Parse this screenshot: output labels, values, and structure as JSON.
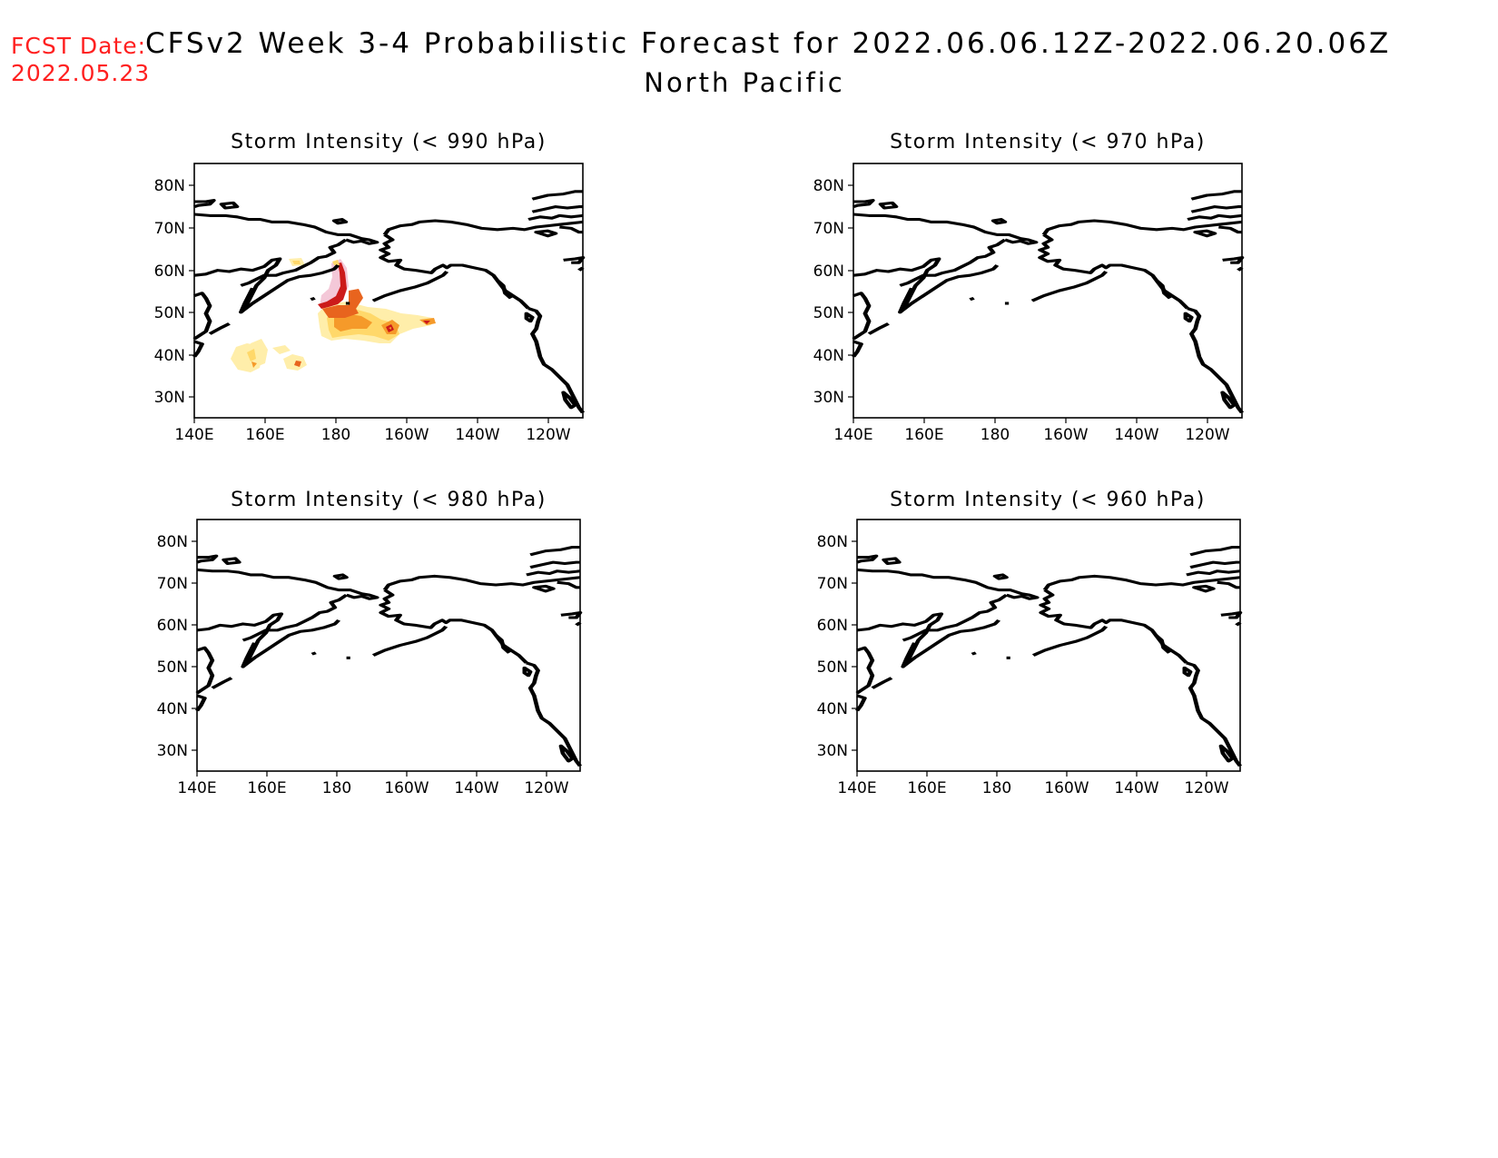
{
  "header": {
    "fcst_date_label": "FCST Date:",
    "fcst_date_value": "2022.05.23",
    "title": "CFSv2 Week 3-4 Probabilistic Forecast for 2022.06.06.12Z-2022.06.20.06Z",
    "subtitle": "North Pacific"
  },
  "colors": {
    "light_yellow": "#ffeeaa",
    "yellow": "#ffd86a",
    "orange": "#f59a2a",
    "dark_orange": "#e8641e",
    "red": "#cc1a1a",
    "pink": "#f4c8d8"
  },
  "panels": [
    {
      "title": "Storm Intensity (< 990 hPa)",
      "y_ticks": [
        "80N",
        "70N",
        "60N",
        "50N",
        "40N",
        "30N"
      ],
      "x_ticks": [
        "140E",
        "160E",
        "180",
        "160W",
        "140W",
        "120W"
      ]
    },
    {
      "title": "Storm Intensity (< 970 hPa)",
      "y_ticks": [
        "80N",
        "70N",
        "60N",
        "50N",
        "40N",
        "30N"
      ],
      "x_ticks": [
        "140E",
        "160E",
        "180",
        "160W",
        "140W",
        "120W"
      ]
    },
    {
      "title": "Storm Intensity (< 980 hPa)",
      "y_ticks": [
        "80N",
        "70N",
        "60N",
        "50N",
        "40N",
        "30N"
      ],
      "x_ticks": [
        "140E",
        "160E",
        "180",
        "160W",
        "140W",
        "120W"
      ]
    },
    {
      "title": "Storm Intensity (< 960 hPa)",
      "y_ticks": [
        "80N",
        "70N",
        "60N",
        "50N",
        "40N",
        "30N"
      ],
      "x_ticks": [
        "140E",
        "160E",
        "180",
        "160W",
        "140W",
        "120W"
      ]
    }
  ]
}
